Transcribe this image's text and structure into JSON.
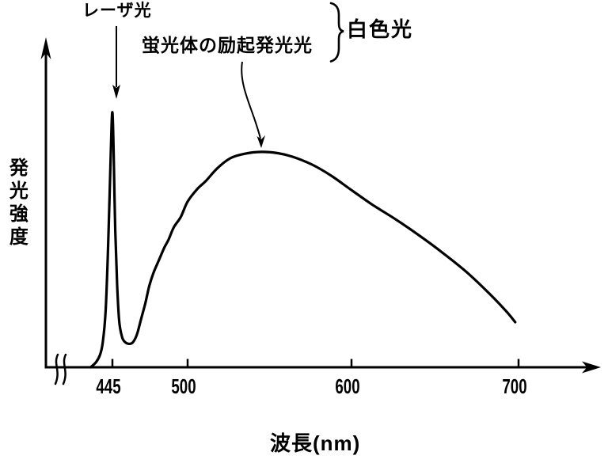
{
  "figure": {
    "background": "#ffffff",
    "ink_color": "#000000"
  },
  "labels": {
    "laser": "レーザ光",
    "phosphor": "蛍光体の励起発光光",
    "white_light": "白色光",
    "x_axis_title": "波長(nm)",
    "y_axis_title": "発光強度"
  },
  "chart_data": {
    "type": "line",
    "title": "",
    "xlabel": "波長(nm)",
    "ylabel": "発光強度",
    "xlim": [
      425,
      710
    ],
    "ylim": [
      0,
      1
    ],
    "x_ticks": [
      445,
      500,
      600,
      700
    ],
    "y_ticks": [],
    "x_axis_break_near_origin": true,
    "grid": false,
    "legend": false,
    "annotations": [
      {
        "text": "レーザ光",
        "arrow": "straight-down",
        "points_to_nm": 445
      },
      {
        "text": "蛍光体の励起発光光",
        "arrow": "curved-down",
        "points_to_nm": 545
      },
      {
        "text": "白色光",
        "brace_groups": [
          "レーザ光",
          "蛍光体の励起発光光"
        ]
      }
    ],
    "series": [
      {
        "name": "白色光スペクトル（445nmレーザ光ピーク＋蛍光体の励起発光光）",
        "points": [
          [
            429,
            0.0
          ],
          [
            433,
            0.02
          ],
          [
            436,
            0.05
          ],
          [
            438,
            0.1
          ],
          [
            440,
            0.22
          ],
          [
            441.5,
            0.42
          ],
          [
            443,
            0.68
          ],
          [
            444,
            0.88
          ],
          [
            445,
            1.0
          ],
          [
            446,
            0.82
          ],
          [
            447,
            0.55
          ],
          [
            448.5,
            0.32
          ],
          [
            450,
            0.18
          ],
          [
            452,
            0.12
          ],
          [
            454,
            0.1
          ],
          [
            457,
            0.092
          ],
          [
            460,
            0.098
          ],
          [
            463,
            0.13
          ],
          [
            466,
            0.19
          ],
          [
            469,
            0.25
          ],
          [
            472,
            0.32
          ],
          [
            475,
            0.37
          ],
          [
            479,
            0.42
          ],
          [
            483,
            0.47
          ],
          [
            486,
            0.5
          ],
          [
            490,
            0.55
          ],
          [
            495,
            0.59
          ],
          [
            500,
            0.65
          ],
          [
            506,
            0.7
          ],
          [
            511,
            0.73
          ],
          [
            518,
            0.78
          ],
          [
            526,
            0.82
          ],
          [
            535,
            0.838
          ],
          [
            545,
            0.845
          ],
          [
            555,
            0.84
          ],
          [
            564,
            0.826
          ],
          [
            576,
            0.795
          ],
          [
            588,
            0.75
          ],
          [
            600,
            0.695
          ],
          [
            612,
            0.64
          ],
          [
            627,
            0.578
          ],
          [
            641,
            0.515
          ],
          [
            655,
            0.447
          ],
          [
            669,
            0.373
          ],
          [
            683,
            0.286
          ],
          [
            693,
            0.217
          ],
          [
            698,
            0.177
          ]
        ]
      }
    ]
  }
}
